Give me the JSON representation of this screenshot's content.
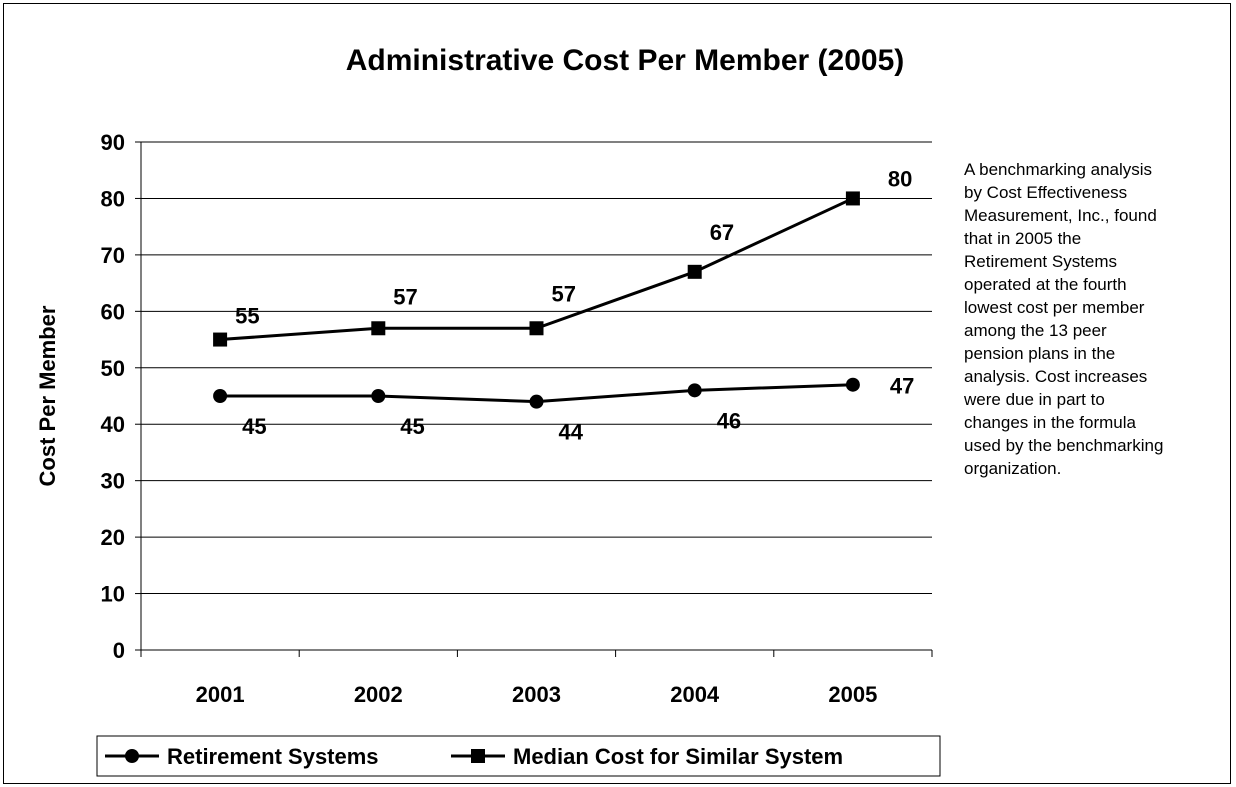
{
  "chart_data": {
    "type": "line",
    "title": "Administrative Cost Per Member (2005)",
    "xlabel": "",
    "ylabel": "Cost Per Member",
    "categories": [
      "2001",
      "2002",
      "2003",
      "2004",
      "2005"
    ],
    "ylim": [
      0,
      90
    ],
    "yticks": [
      0,
      10,
      20,
      30,
      40,
      50,
      60,
      70,
      80,
      90
    ],
    "grid": true,
    "legend": "bottom",
    "series": [
      {
        "name": "Retirement Systems",
        "marker": "circle",
        "color": "#000000",
        "values": [
          45,
          45,
          44,
          46,
          47
        ],
        "labels": [
          "45",
          "45",
          "44",
          "46",
          "47"
        ]
      },
      {
        "name": "Median Cost for Similar System",
        "marker": "square",
        "color": "#000000",
        "values": [
          55,
          57,
          57,
          67,
          80
        ],
        "labels": [
          "55",
          "57",
          "57",
          "67",
          "80"
        ]
      }
    ]
  },
  "annotation": "A benchmarking analysis by Cost Effectiveness Measurement, Inc., found that in 2005 the Retirement Systems operated at the fourth lowest cost per member among the 13 peer pension plans in the analysis. Cost increases were due in part to changes in the formula used by the benchmarking organization."
}
